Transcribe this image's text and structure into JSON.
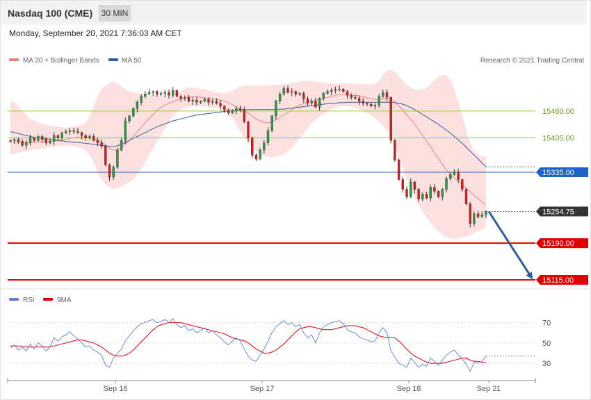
{
  "header": {
    "title": "Nasdaq 100 (CME)",
    "timeframe": "30 MIN"
  },
  "timestamp": "Monday, September 20, 2021 7:36:03 AM CET",
  "credit": "Research © 2021 Trading Central",
  "legend": {
    "upper": [
      {
        "label": "MA 20 + Bollinger Bands",
        "color": "#f08080"
      },
      {
        "label": "MA 50",
        "color": "#2f5c9c"
      }
    ],
    "lower": [
      {
        "label": "RSI",
        "color": "#5b7fd8"
      },
      {
        "label": "9MA",
        "color": "#e00000"
      }
    ]
  },
  "chart_data": [
    {
      "type": "candlestick",
      "x_labels": [
        "Sep 16",
        "Sep 17",
        "Sep 18",
        "Sep 21"
      ],
      "ylim": [
        15105,
        15545
      ],
      "levels": [
        {
          "value": 15460.0,
          "label": "15460.00",
          "color": "#9acd32",
          "style": "resistance"
        },
        {
          "value": 15405.0,
          "label": "15405.00",
          "color": "#9acd32",
          "style": "resistance"
        },
        {
          "value": 15335.0,
          "label": "15335.00",
          "color": "#1e64c8",
          "style": "pivot"
        },
        {
          "value": 15254.75,
          "label": "15254.75",
          "color": "#333333",
          "style": "last"
        },
        {
          "value": 15190.0,
          "label": "15190.00",
          "color": "#e00000",
          "style": "support"
        },
        {
          "value": 15115.0,
          "label": "15115.00",
          "color": "#e00000",
          "style": "support"
        }
      ],
      "projection": {
        "from": 15254.75,
        "to": 15115.0,
        "color": "#2f5c9c"
      },
      "series": [
        {
          "name": "Close",
          "values": [
            15400,
            15402,
            15398,
            15390,
            15395,
            15405,
            15400,
            15408,
            15402,
            15395,
            15398,
            15410,
            15405,
            15415,
            15418,
            15420,
            15418,
            15416,
            15410,
            15405,
            15408,
            15400,
            15395,
            15388,
            15350,
            15325,
            15345,
            15380,
            15400,
            15440,
            15450,
            15465,
            15478,
            15490,
            15495,
            15498,
            15500,
            15494,
            15496,
            15498,
            15492,
            15502,
            15490,
            15486,
            15488,
            15480,
            15482,
            15478,
            15480,
            15484,
            15478,
            15480,
            15476,
            15470,
            15462,
            15456,
            15460,
            15465,
            15462,
            15438,
            15405,
            15370,
            15362,
            15380,
            15395,
            15420,
            15450,
            15480,
            15495,
            15506,
            15498,
            15500,
            15494,
            15496,
            15485,
            15476,
            15480,
            15468,
            15486,
            15496,
            15500,
            15502,
            15504,
            15505,
            15500,
            15492,
            15488,
            15486,
            15480,
            15476,
            15474,
            15470,
            15472,
            15490,
            15498,
            15488,
            15400,
            15360,
            15320,
            15300,
            15285,
            15315,
            15300,
            15280,
            15290,
            15282,
            15304,
            15296,
            15285,
            15300,
            15322,
            15330,
            15335,
            15320,
            15300,
            15270,
            15230,
            15250,
            15244,
            15248,
            15255
          ]
        },
        {
          "name": "MA 20",
          "values": [
            15396,
            15397,
            15397,
            15396,
            15395,
            15396,
            15396,
            15397,
            15397,
            15397,
            15398,
            15399,
            15400,
            15401,
            15402,
            15404,
            15405,
            15406,
            15407,
            15407,
            15406,
            15404,
            15401,
            15397,
            15391,
            15384,
            15380,
            15381,
            15385,
            15392,
            15400,
            15408,
            15417,
            15427,
            15436,
            15445,
            15453,
            15461,
            15467,
            15472,
            15476,
            15479,
            15482,
            15485,
            15487,
            15489,
            15489,
            15489,
            15488,
            15487,
            15486,
            15485,
            15484,
            15482,
            15480,
            15477,
            15473,
            15469,
            15465,
            15461,
            15456,
            15450,
            15444,
            15440,
            15437,
            15436,
            15438,
            15442,
            15447,
            15452,
            15457,
            15463,
            15468,
            15472,
            15475,
            15478,
            15480,
            15482,
            15484,
            15486,
            15488,
            15490,
            15492,
            15494,
            15494,
            15494,
            15493,
            15492,
            15491,
            15489,
            15487,
            15485,
            15484,
            15484,
            15485,
            15486,
            15484,
            15479,
            15471,
            15462,
            15452,
            15443,
            15433,
            15422,
            15410,
            15399,
            15387,
            15375,
            15363,
            15351,
            15340,
            15330,
            15323,
            15316,
            15309,
            15302,
            15295,
            15288,
            15281,
            15274,
            15268
          ]
        },
        {
          "name": "MA 50",
          "values": [
            15418,
            15416,
            15414,
            15412,
            15410,
            15408,
            15406,
            15405,
            15404,
            15403,
            15402,
            15401,
            15400,
            15399,
            15398,
            15397,
            15396,
            15396,
            15395,
            15394,
            15393,
            15392,
            15391,
            15390,
            15389,
            15388,
            15387,
            15389,
            15392,
            15396,
            15400,
            15404,
            15408,
            15412,
            15416,
            15420,
            15424,
            15428,
            15431,
            15434,
            15437,
            15440,
            15442,
            15444,
            15446,
            15448,
            15450,
            15452,
            15453,
            15454,
            15455,
            15456,
            15457,
            15458,
            15459,
            15460,
            15461,
            15462,
            15462,
            15463,
            15463,
            15463,
            15463,
            15463,
            15463,
            15463,
            15463,
            15463,
            15464,
            15464,
            15465,
            15466,
            15467,
            15468,
            15469,
            15470,
            15471,
            15472,
            15473,
            15474,
            15475,
            15476,
            15476,
            15477,
            15477,
            15478,
            15478,
            15478,
            15478,
            15478,
            15478,
            15478,
            15478,
            15478,
            15478,
            15478,
            15478,
            15477,
            15476,
            15474,
            15471,
            15467,
            15463,
            15458,
            15453,
            15448,
            15443,
            15438,
            15433,
            15427,
            15421,
            15415,
            15408,
            15401,
            15394,
            15386,
            15378,
            15370,
            15362,
            15354,
            15346
          ]
        }
      ],
      "band": {
        "upper": [
          15480,
          15478,
          15470,
          15460,
          15452,
          15444,
          15440,
          15436,
          15434,
          15432,
          15430,
          15429,
          15428,
          15427,
          15426,
          15427,
          15428,
          15430,
          15432,
          15436,
          15450,
          15470,
          15490,
          15505,
          15512,
          15518,
          15520,
          15516,
          15510,
          15504,
          15500,
          15498,
          15496,
          15495,
          15494,
          15493,
          15492,
          15492,
          15491,
          15491,
          15490,
          15490,
          15496,
          15502,
          15506,
          15508,
          15508,
          15507,
          15506,
          15504,
          15502,
          15500,
          15498,
          15497,
          15496,
          15498,
          15502,
          15506,
          15510,
          15512,
          15512,
          15512,
          15512,
          15512,
          15512,
          15512,
          15513,
          15514,
          15514,
          15515,
          15516,
          15517,
          15518,
          15520,
          15522,
          15522,
          15521,
          15520,
          15519,
          15518,
          15517,
          15516,
          15516,
          15516,
          15517,
          15517,
          15516,
          15516,
          15515,
          15515,
          15515,
          15515,
          15516,
          15522,
          15534,
          15543,
          15545,
          15540,
          15532,
          15522,
          15514,
          15508,
          15505,
          15503,
          15504,
          15508,
          15515,
          15523,
          15530,
          15534,
          15533,
          15524,
          15505,
          15480,
          15450,
          15420,
          15395,
          15378,
          15370,
          15368,
          15368
        ],
        "lower": [
          15370,
          15372,
          15375,
          15376,
          15378,
          15380,
          15381,
          15382,
          15384,
          15385,
          15386,
          15387,
          15388,
          15389,
          15390,
          15389,
          15388,
          15386,
          15384,
          15380,
          15370,
          15355,
          15335,
          15320,
          15310,
          15304,
          15300,
          15302,
          15306,
          15310,
          15314,
          15320,
          15330,
          15342,
          15355,
          15370,
          15384,
          15398,
          15412,
          15425,
          15438,
          15450,
          15458,
          15463,
          15466,
          15468,
          15470,
          15471,
          15470,
          15469,
          15468,
          15467,
          15466,
          15465,
          15462,
          15455,
          15445,
          15432,
          15418,
          15405,
          15395,
          15386,
          15378,
          15372,
          15368,
          15366,
          15365,
          15366,
          15368,
          15372,
          15378,
          15386,
          15395,
          15405,
          15415,
          15425,
          15434,
          15442,
          15449,
          15455,
          15460,
          15464,
          15467,
          15469,
          15470,
          15470,
          15469,
          15467,
          15464,
          15460,
          15456,
          15451,
          15445,
          15438,
          15430,
          15420,
          15406,
          15388,
          15367,
          15344,
          15320,
          15300,
          15283,
          15268,
          15254,
          15242,
          15232,
          15222,
          15214,
          15208,
          15203,
          15200,
          15199,
          15200,
          15202,
          15204,
          15207,
          15210,
          15214,
          15218,
          15222
        ]
      }
    },
    {
      "type": "line",
      "x_labels": [
        "Sep 16",
        "Sep 17",
        "Sep 18",
        "Sep 21"
      ],
      "ylim": [
        15,
        80
      ],
      "y_ticks": [
        70,
        50,
        30
      ],
      "series": [
        {
          "name": "RSI",
          "values": [
            45,
            48,
            43,
            46,
            42,
            49,
            44,
            50,
            47,
            42,
            46,
            55,
            52,
            56,
            58,
            61,
            57,
            54,
            50,
            46,
            47,
            43,
            41,
            38,
            28,
            26,
            35,
            40,
            44,
            52,
            57,
            62,
            66,
            69,
            70,
            72,
            73,
            70,
            71,
            73,
            70,
            74,
            68,
            65,
            67,
            62,
            64,
            60,
            62,
            65,
            60,
            62,
            58,
            55,
            51,
            48,
            52,
            55,
            52,
            44,
            37,
            33,
            32,
            38,
            44,
            52,
            60,
            66,
            69,
            72,
            68,
            70,
            66,
            68,
            60,
            55,
            58,
            50,
            60,
            66,
            68,
            70,
            71,
            72,
            69,
            63,
            61,
            60,
            56,
            54,
            53,
            51,
            52,
            60,
            65,
            60,
            42,
            36,
            30,
            28,
            26,
            35,
            31,
            26,
            29,
            27,
            35,
            32,
            28,
            33,
            38,
            41,
            43,
            38,
            34,
            29,
            22,
            31,
            30,
            32,
            37
          ]
        },
        {
          "name": "9MA",
          "values": [
            47,
            47,
            47,
            47,
            46,
            46,
            46,
            46,
            46,
            46,
            46,
            47,
            48,
            49,
            50,
            51,
            52,
            53,
            53,
            52,
            51,
            50,
            48,
            46,
            43,
            40,
            38,
            37,
            37,
            38,
            40,
            43,
            47,
            51,
            55,
            59,
            63,
            66,
            68,
            69,
            70,
            70,
            70,
            70,
            69,
            68,
            67,
            66,
            65,
            64,
            63,
            62,
            61,
            60,
            59,
            57,
            55,
            54,
            53,
            52,
            50,
            47,
            44,
            42,
            40,
            40,
            41,
            43,
            46,
            49,
            53,
            57,
            61,
            64,
            65,
            66,
            66,
            65,
            64,
            63,
            63,
            63,
            64,
            65,
            66,
            67,
            67,
            67,
            66,
            65,
            63,
            61,
            59,
            57,
            56,
            55,
            55,
            55,
            52,
            48,
            44,
            40,
            37,
            35,
            33,
            31,
            30,
            30,
            30,
            30,
            31,
            32,
            33,
            34,
            35,
            35,
            33,
            32,
            32,
            31,
            31
          ]
        }
      ]
    }
  ]
}
